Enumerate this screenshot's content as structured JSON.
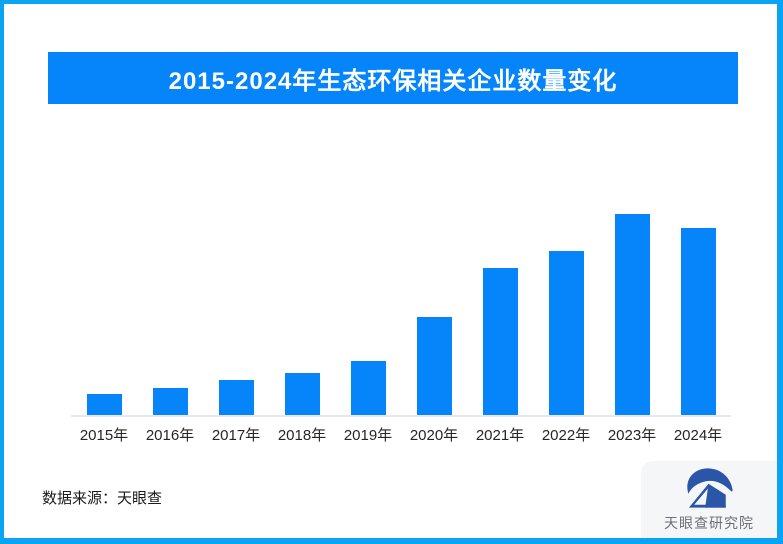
{
  "frame": {
    "border_color": "#0AA4F4",
    "background": "#FFFFFF"
  },
  "header": {
    "title": "2015-2024年生态环保相关企业数量变化",
    "banner_color": "#0585F9",
    "title_color": "#FFFFFF"
  },
  "chart_data": {
    "type": "bar",
    "title": "2015-2024年生态环保相关企业数量变化",
    "categories": [
      "2015年",
      "2016年",
      "2017年",
      "2018年",
      "2019年",
      "2020年",
      "2021年",
      "2022年",
      "2023年",
      "2024年"
    ],
    "values": [
      21,
      27,
      35,
      42,
      54,
      98,
      147,
      164,
      201,
      187
    ],
    "value_note": "relative heights; chart shows no y-axis ticks or data labels",
    "xlabel": "",
    "ylabel": "",
    "legend": false,
    "grid": false,
    "bar_color": "#0585F9",
    "axis_line_color": "#E8E8E8",
    "tick_label_color": "#262626"
  },
  "footer": {
    "source": "数据来源：天眼查"
  },
  "branding": {
    "logo_text": "天眼查研究院",
    "logo_color": "#2B55A7",
    "logo_box_color": "#F5F6F7"
  }
}
